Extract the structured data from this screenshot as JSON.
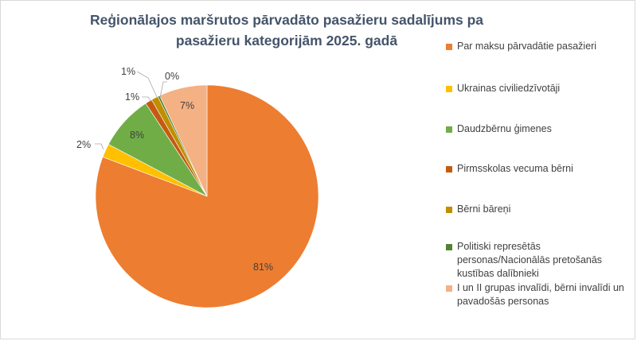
{
  "chart_data": {
    "type": "pie",
    "title": "Reģionālajos maršrutos pārvadāto pasažieru sadalījums pa pasažieru kategorijām 2025. gadā",
    "categories": [
      "Par maksu pārvadātie pasažieri",
      "Ukrainas civiliedzīvotāji",
      "Daudzbērnu ģimenes",
      "Pirmsskolas vecuma bērni",
      "Bērni bāreņi",
      "Politiski represētās personas/Nacionālās pretošanās kustības dalībnieki",
      "I un II grupas invalīdi, bērni invalīdi un pavadošās personas"
    ],
    "values": [
      81,
      2,
      8,
      1,
      1,
      0.3,
      7
    ],
    "data_labels": [
      "81%",
      "2%",
      "8%",
      "1%",
      "1%",
      "0%",
      "7%"
    ],
    "colors": [
      "#ed7d31",
      "#ffc000",
      "#70ad47",
      "#c55a11",
      "#bf8f00",
      "#548235",
      "#f4b183"
    ],
    "legend_position": "right"
  }
}
